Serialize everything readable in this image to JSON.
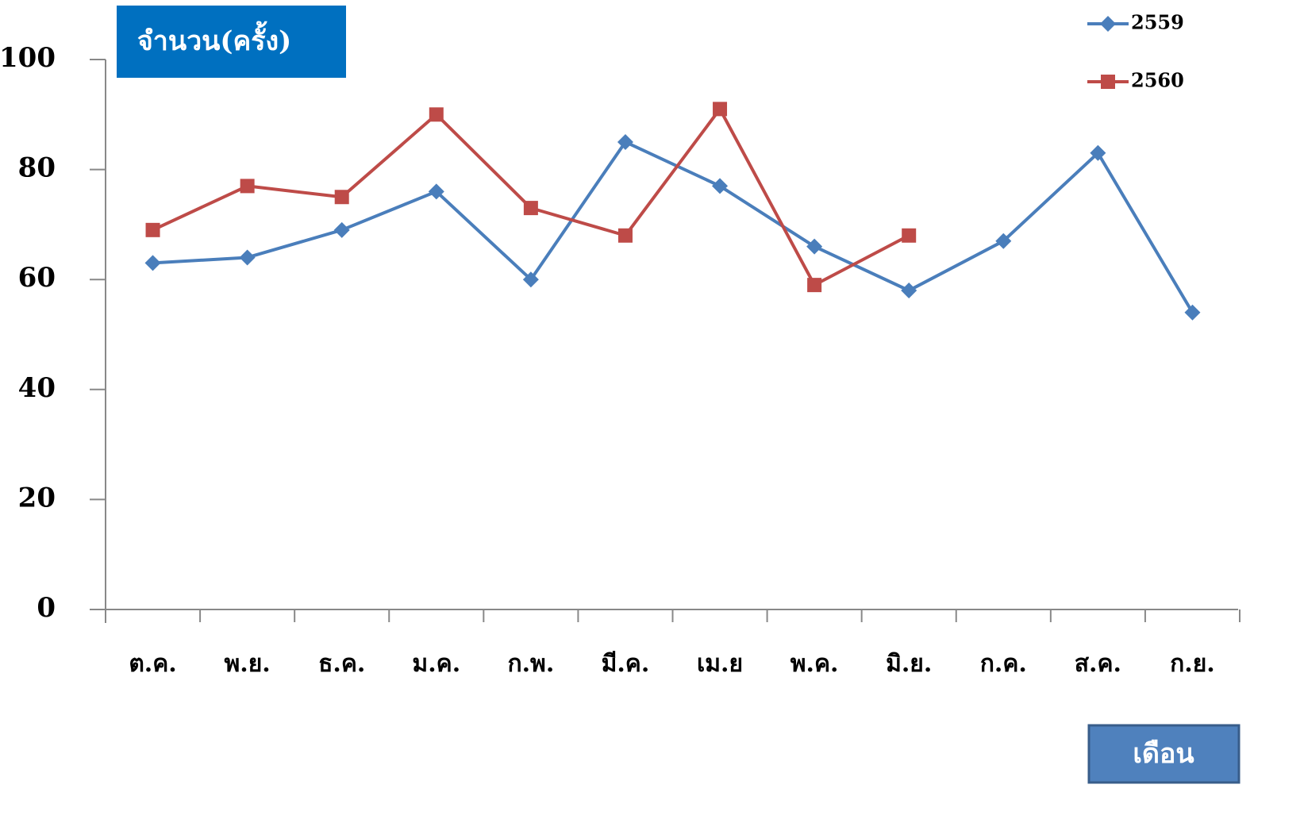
{
  "chart_data": {
    "type": "line",
    "y_label": "จำนวน(ครั้ง)",
    "x_label": "เดือน",
    "categories": [
      "ต.ค.",
      "พ.ย.",
      "ธ.ค.",
      "ม.ค.",
      "ก.พ.",
      "มี.ค.",
      "เม.ย",
      "พ.ค.",
      "มิ.ย.",
      "ก.ค.",
      "ส.ค.",
      "ก.ย."
    ],
    "series": [
      {
        "name": "2559",
        "color": "#4a7ebb",
        "marker": "diamond",
        "values": [
          63,
          64,
          69,
          76,
          60,
          85,
          77,
          66,
          58,
          67,
          83,
          54
        ]
      },
      {
        "name": "2560",
        "color": "#be4b48",
        "marker": "square",
        "values": [
          69,
          77,
          75,
          90,
          73,
          68,
          91,
          59,
          68,
          null,
          null,
          null
        ]
      }
    ],
    "ylim": [
      0,
      100
    ],
    "yticks": [
      0,
      20,
      40,
      60,
      80,
      100
    ],
    "grid": false,
    "legend": "top-right"
  }
}
